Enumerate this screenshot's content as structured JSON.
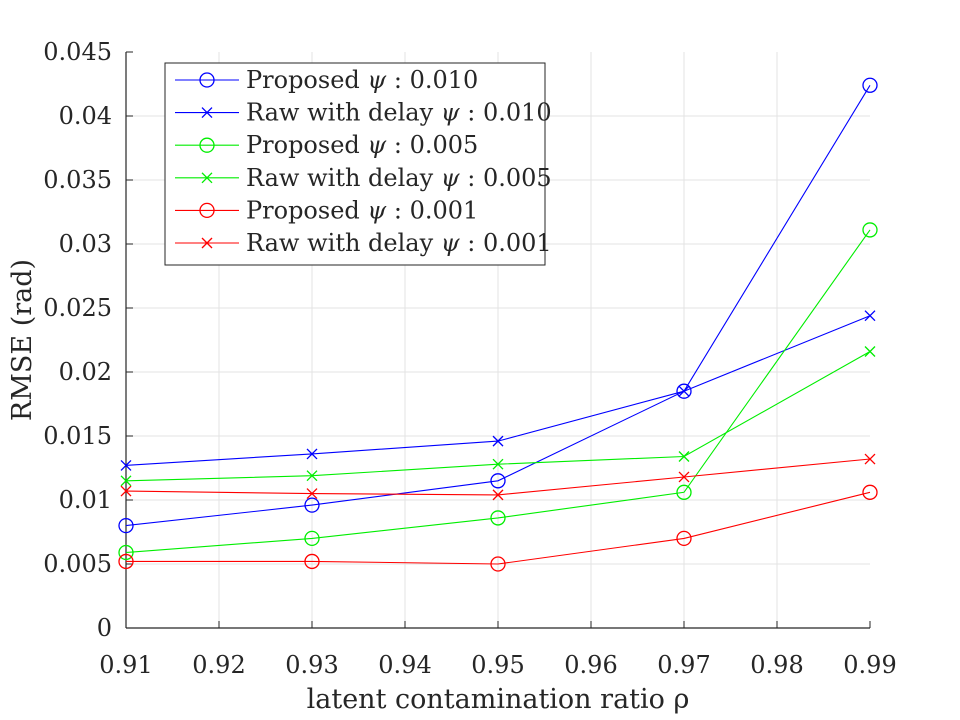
{
  "chart_data": {
    "type": "line",
    "title": "",
    "xlabel": "latent contamination ratio ρ",
    "ylabel": "RMSE (rad)",
    "xlim": [
      0.91,
      0.99
    ],
    "ylim": [
      0,
      0.045
    ],
    "xticks": [
      "0.91",
      "0.92",
      "0.93",
      "0.94",
      "0.95",
      "0.96",
      "0.97",
      "0.98",
      "0.99"
    ],
    "yticks": [
      "0",
      "0.005",
      "0.01",
      "0.015",
      "0.02",
      "0.025",
      "0.03",
      "0.035",
      "0.04",
      "0.045"
    ],
    "grid": true,
    "legend_position": "top-left",
    "x": [
      0.91,
      0.93,
      0.95,
      0.97,
      0.99
    ],
    "series": [
      {
        "name_prefix": "Proposed",
        "name_psi": "ψ",
        "name_value": ": 0.010",
        "color": "#0000ff",
        "marker": "circle",
        "values": [
          0.008,
          0.0096,
          0.0115,
          0.0185,
          0.0424
        ]
      },
      {
        "name_prefix": "Raw with delay",
        "name_psi": "ψ",
        "name_value": ": 0.010",
        "color": "#0000ff",
        "marker": "x",
        "values": [
          0.0127,
          0.0136,
          0.0146,
          0.0185,
          0.0244
        ]
      },
      {
        "name_prefix": "Proposed",
        "name_psi": "ψ",
        "name_value": ": 0.005",
        "color": "#00ee00",
        "marker": "circle",
        "values": [
          0.0059,
          0.007,
          0.0086,
          0.0106,
          0.0311
        ]
      },
      {
        "name_prefix": "Raw with delay",
        "name_psi": "ψ",
        "name_value": ": 0.005",
        "color": "#00ee00",
        "marker": "x",
        "values": [
          0.0115,
          0.0119,
          0.0128,
          0.0134,
          0.0216
        ]
      },
      {
        "name_prefix": "Proposed",
        "name_psi": "ψ",
        "name_value": ": 0.001",
        "color": "#ff0000",
        "marker": "circle",
        "values": [
          0.0052,
          0.0052,
          0.005,
          0.007,
          0.0106
        ]
      },
      {
        "name_prefix": "Raw with delay",
        "name_psi": "ψ",
        "name_value": ": 0.001",
        "color": "#ff0000",
        "marker": "x",
        "values": [
          0.0107,
          0.0105,
          0.0104,
          0.0118,
          0.0132
        ]
      }
    ]
  }
}
